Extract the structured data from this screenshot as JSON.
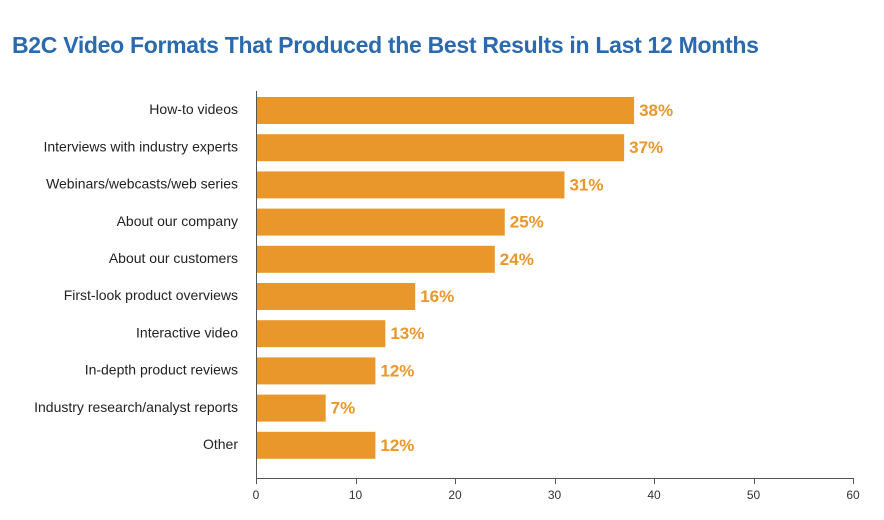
{
  "colors": {
    "title": "#2a6aad",
    "bar": "#e9972a",
    "value_label": "#e9972a",
    "axis": "#555555"
  },
  "chart_data": {
    "type": "bar",
    "orientation": "horizontal",
    "title": "B2C Video Formats That Produced the Best Results in Last 12 Months",
    "xlabel": "",
    "ylabel": "",
    "categories": [
      "How-to videos",
      "Interviews with industry experts",
      "Webinars/webcasts/web series",
      "About our company",
      "About our customers",
      "First-look product overviews",
      "Interactive video",
      "In-depth product reviews",
      "Industry research/analyst reports",
      "Other"
    ],
    "values": [
      38,
      37,
      31,
      25,
      24,
      16,
      13,
      12,
      7,
      12
    ],
    "value_labels": [
      "38%",
      "37%",
      "31%",
      "25%",
      "24%",
      "16%",
      "13%",
      "12%",
      "7%",
      "12%"
    ],
    "xlim": [
      0,
      60
    ],
    "xticks": [
      0,
      10,
      20,
      30,
      40,
      50,
      60
    ],
    "xtick_labels": [
      "0",
      "10",
      "20",
      "30",
      "40",
      "50",
      "60"
    ],
    "grid": false,
    "legend": "none"
  }
}
